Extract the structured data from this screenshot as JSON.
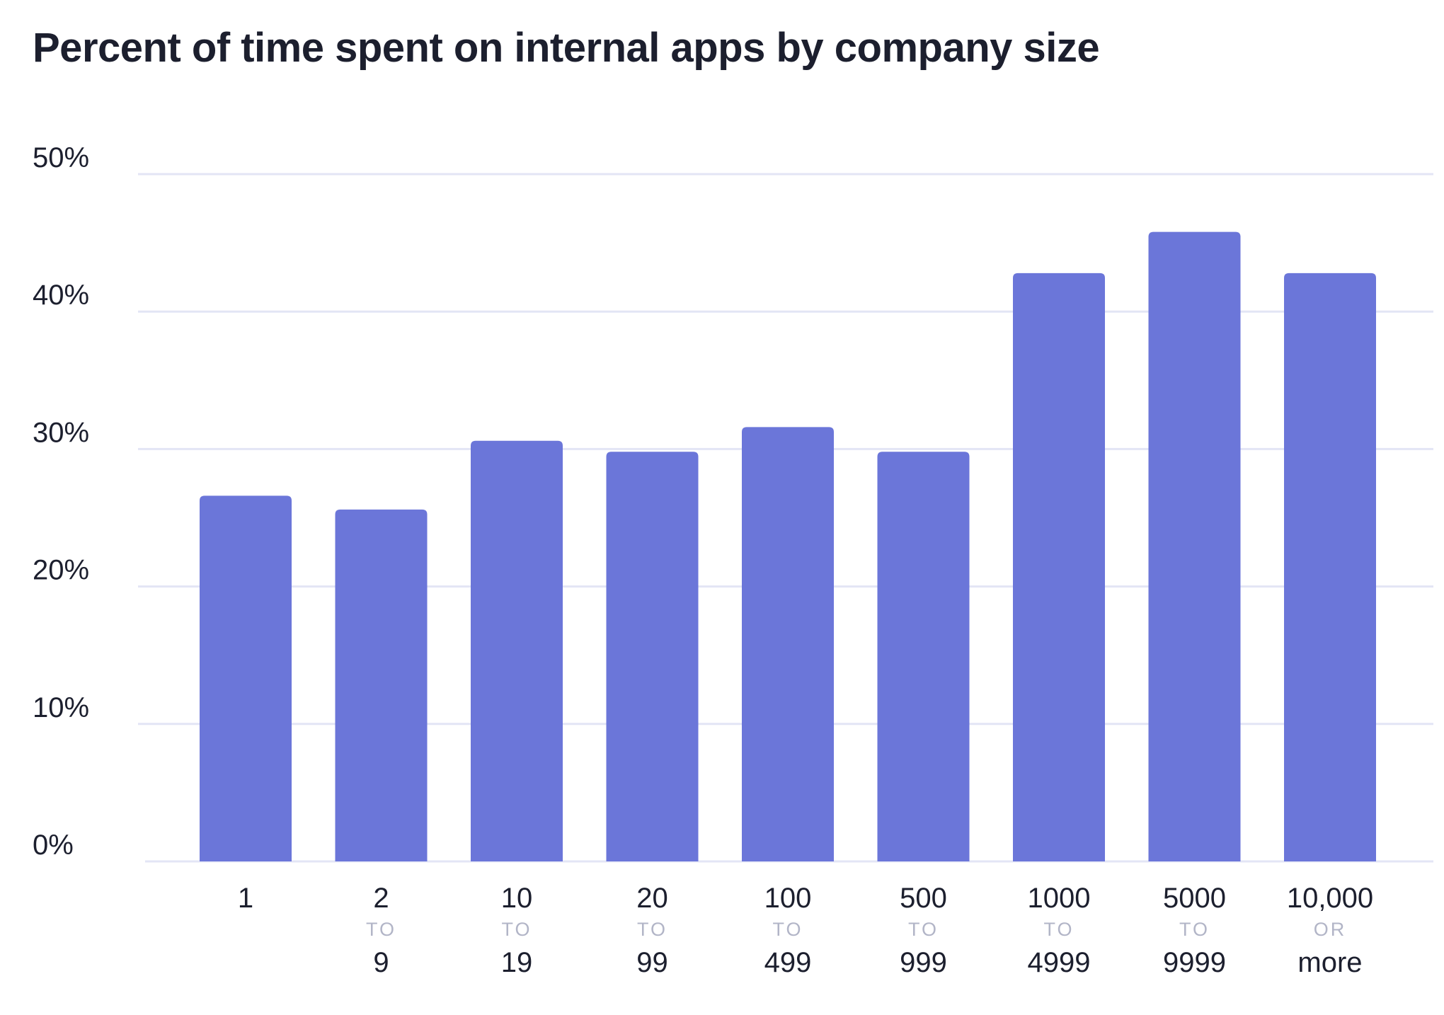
{
  "chart_data": {
    "type": "bar",
    "title": "Percent of time spent on internal apps by company size",
    "xlabel": "",
    "ylabel": "",
    "ylim": [
      0,
      50
    ],
    "y_ticks": [
      "0%",
      "10%",
      "20%",
      "30%",
      "40%",
      "50%"
    ],
    "y_tick_values": [
      0,
      10,
      20,
      30,
      40,
      50
    ],
    "grid": true,
    "categories": [
      {
        "top": "1",
        "mid": "",
        "bottom": ""
      },
      {
        "top": "2",
        "mid": "TO",
        "bottom": "9"
      },
      {
        "top": "10",
        "mid": "TO",
        "bottom": "19"
      },
      {
        "top": "20",
        "mid": "TO",
        "bottom": "99"
      },
      {
        "top": "100",
        "mid": "TO",
        "bottom": "499"
      },
      {
        "top": "500",
        "mid": "TO",
        "bottom": "999"
      },
      {
        "top": "1000",
        "mid": "TO",
        "bottom": "4999"
      },
      {
        "top": "5000",
        "mid": "TO",
        "bottom": "9999"
      },
      {
        "top": "10,000",
        "mid": "OR",
        "bottom": "more"
      }
    ],
    "values": [
      26.6,
      25.6,
      30.6,
      29.8,
      31.6,
      29.8,
      42.8,
      45.8,
      42.8
    ],
    "colors": {
      "bar": "#6b76d9",
      "grid": "#e3e5f5",
      "text": "#1c1f2e",
      "connector": "#b2b5c7"
    }
  }
}
